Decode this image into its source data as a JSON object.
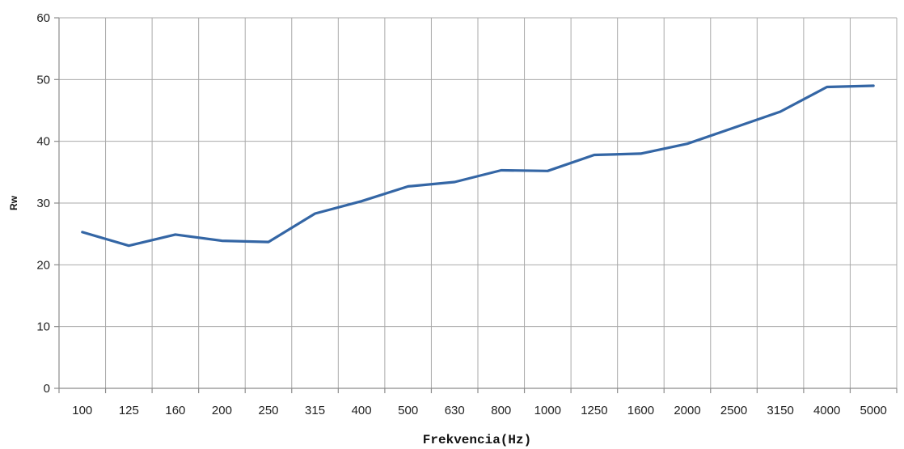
{
  "chart_data": {
    "type": "line",
    "title": "",
    "xlabel": "Frekvencia(Hz)",
    "ylabel": "Rw",
    "categories": [
      "100",
      "125",
      "160",
      "200",
      "250",
      "315",
      "400",
      "500",
      "630",
      "800",
      "1000",
      "1250",
      "1600",
      "2000",
      "2500",
      "3150",
      "4000",
      "5000"
    ],
    "ylim": [
      0,
      60
    ],
    "yticks": [
      0,
      10,
      20,
      30,
      40,
      50,
      60
    ],
    "grid": true,
    "legend": "none",
    "series": [
      {
        "values": [
          25.3,
          23.1,
          24.9,
          23.9,
          23.7,
          28.3,
          30.3,
          32.7,
          33.4,
          35.3,
          35.2,
          37.8,
          38.0,
          39.6,
          42.2,
          44.8,
          48.8,
          49.0
        ],
        "color": "#3466a5"
      }
    ]
  }
}
